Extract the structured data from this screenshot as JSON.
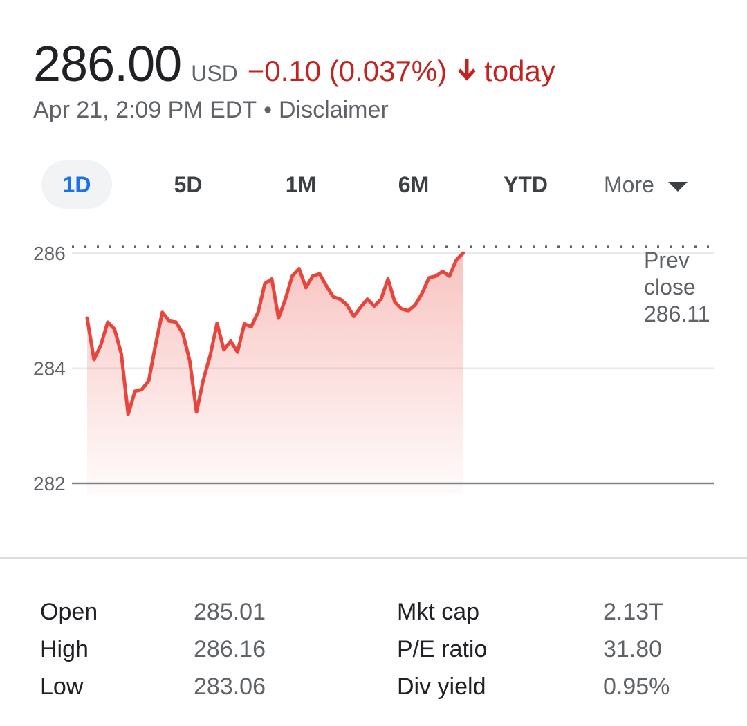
{
  "header": {
    "price": "286.00",
    "currency": "USD",
    "change": "−0.10 (0.037%)",
    "change_period": "today",
    "timestamp": "Apr 21, 2:09 PM EDT",
    "separator": "•",
    "disclaimer": "Disclaimer"
  },
  "colors": {
    "negative": "#c5221f",
    "line": "#e8453c",
    "active_tab": "#1a73e8"
  },
  "icons": {
    "change_direction": "arrow-down-icon",
    "more_dropdown": "caret-down-icon"
  },
  "tabs": [
    {
      "label": "1D",
      "active": true
    },
    {
      "label": "5D",
      "active": false
    },
    {
      "label": "1M",
      "active": false
    },
    {
      "label": "6M",
      "active": false
    },
    {
      "label": "YTD",
      "active": false
    },
    {
      "label": "More",
      "active": false
    }
  ],
  "chart_data": {
    "type": "area",
    "ylim": [
      282,
      286
    ],
    "y_ticks": [
      "286",
      "284",
      "282"
    ],
    "prev_close": {
      "label_line1": "Prev",
      "label_line2": "close",
      "value": "286.11",
      "level": 286.11
    },
    "values": [
      284.87,
      284.15,
      284.4,
      284.8,
      284.68,
      284.25,
      283.2,
      283.6,
      283.63,
      283.78,
      284.4,
      284.97,
      284.82,
      284.8,
      284.6,
      284.13,
      283.24,
      283.8,
      284.22,
      284.78,
      284.32,
      284.47,
      284.28,
      284.77,
      284.72,
      284.97,
      285.47,
      285.55,
      284.87,
      285.2,
      285.6,
      285.73,
      285.4,
      285.6,
      285.64,
      285.43,
      285.24,
      285.2,
      285.1,
      284.9,
      285.06,
      285.2,
      285.08,
      285.2,
      285.55,
      285.15,
      285.03,
      285.0,
      285.1,
      285.3,
      285.57,
      285.6,
      285.68,
      285.6,
      285.88,
      286.0
    ],
    "session_fraction_elapsed": 0.6
  },
  "stats": [
    {
      "label": "Open",
      "value": "285.01",
      "label2": "Mkt cap",
      "value2": "2.13T"
    },
    {
      "label": "High",
      "value": "286.16",
      "label2": "P/E ratio",
      "value2": "31.80"
    },
    {
      "label": "Low",
      "value": "283.06",
      "label2": "Div yield",
      "value2": "0.95%"
    }
  ]
}
